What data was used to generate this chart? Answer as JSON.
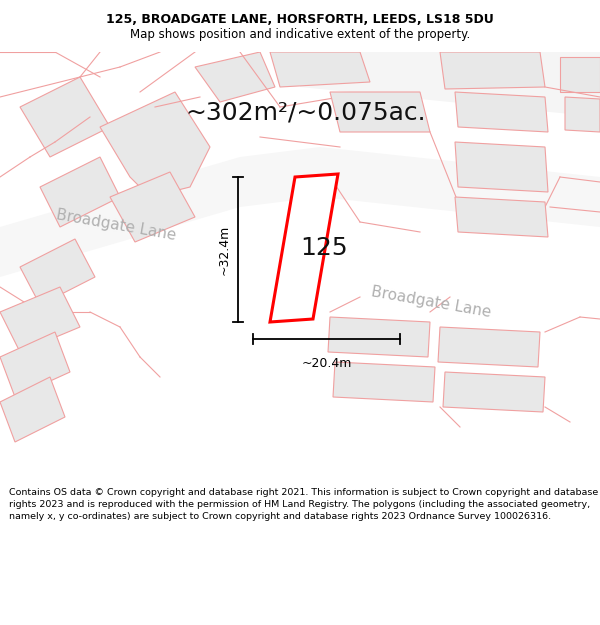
{
  "title_line1": "125, BROADGATE LANE, HORSFORTH, LEEDS, LS18 5DU",
  "title_line2": "Map shows position and indicative extent of the property.",
  "footer_text": "Contains OS data © Crown copyright and database right 2021. This information is subject to Crown copyright and database rights 2023 and is reproduced with the permission of HM Land Registry. The polygons (including the associated geometry, namely x, y co-ordinates) are subject to Crown copyright and database rights 2023 Ordnance Survey 100026316.",
  "area_label": "~302m²/~0.075ac.",
  "width_label": "~20.4m",
  "height_label": "~32.4m",
  "house_number": "125",
  "bg_color": "#ffffff",
  "map_bg": "#ffffff",
  "building_fill": "#e8e8e8",
  "building_edge": "#f0a0a0",
  "parcel_edge": "#f0a0a0",
  "highlight_edge": "#ff0000",
  "highlight_fill": "#ffffff",
  "road_label_color": "#b0b0b0",
  "dim_color": "#000000",
  "title_color": "#000000",
  "footer_color": "#000000",
  "title_fontsize": 9,
  "subtitle_fontsize": 8.5,
  "area_fontsize": 18,
  "dim_fontsize": 9,
  "house_fontsize": 18,
  "road_fontsize": 11
}
